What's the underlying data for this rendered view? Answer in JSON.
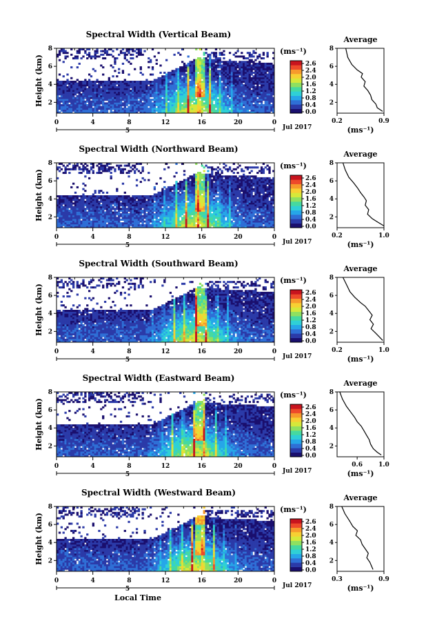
{
  "figure": {
    "xlabel": "Local Time",
    "date_label": "Jul 2017",
    "colorbar_unit": "(ms⁻¹)",
    "colorbar_ticks": [
      "2.6",
      "2.4",
      "2.0",
      "1.6",
      "1.2",
      "0.8",
      "0.4",
      "0.0"
    ],
    "colormap": [
      "#1a0f6e",
      "#2b3aa8",
      "#2f6fd6",
      "#26a6e8",
      "#2fd0d6",
      "#46d9a0",
      "#8fe060",
      "#d6e83a",
      "#f7d033",
      "#f79a2c",
      "#ee4a2a",
      "#c8141e"
    ],
    "average_title": "Average",
    "average_xlabel": "(ms⁻¹)"
  },
  "chart_data": [
    {
      "type": "heatmap",
      "title": "Spectral Width (Vertical Beam)",
      "xlabel": "",
      "ylabel": "Height (km)",
      "x_ticks": [
        "0",
        "4",
        "8",
        "12",
        "16",
        "20",
        "0"
      ],
      "x_secondary_label": "5",
      "y_ticks": [
        "8",
        "6",
        "4",
        "2"
      ],
      "xlim": [
        0,
        24
      ],
      "ylim": [
        0.8,
        8
      ],
      "profile": {
        "type": "line",
        "title": "Average",
        "x_ticks": [
          "0.2",
          "0.9"
        ],
        "xlim": [
          0.2,
          0.9
        ],
        "ylim": [
          0.8,
          8
        ],
        "x": [
          0.33,
          0.36,
          0.42,
          0.5,
          0.58,
          0.56,
          0.62,
          0.6,
          0.66,
          0.7,
          0.72,
          0.78,
          0.8,
          0.88
        ],
        "y": [
          8.0,
          7.0,
          6.2,
          5.6,
          5.2,
          4.8,
          4.3,
          3.8,
          3.3,
          2.8,
          2.3,
          1.8,
          1.4,
          1.0
        ]
      }
    },
    {
      "type": "heatmap",
      "title": "Spectral Width (Northward Beam)",
      "xlabel": "",
      "ylabel": "Height (km)",
      "x_ticks": [
        "0",
        "4",
        "8",
        "12",
        "16",
        "20",
        "0"
      ],
      "x_secondary_label": "5",
      "y_ticks": [
        "8",
        "6",
        "4",
        "2"
      ],
      "xlim": [
        0,
        24
      ],
      "ylim": [
        0.8,
        8
      ],
      "profile": {
        "type": "line",
        "title": "Average",
        "x_ticks": [
          "0.2",
          "1.0"
        ],
        "xlim": [
          0.2,
          1.0
        ],
        "ylim": [
          0.8,
          8
        ],
        "x": [
          0.3,
          0.34,
          0.4,
          0.48,
          0.55,
          0.6,
          0.66,
          0.7,
          0.68,
          0.74,
          0.72,
          0.8,
          0.9,
          1.0
        ],
        "y": [
          8.0,
          7.2,
          6.4,
          5.8,
          5.2,
          4.7,
          4.2,
          3.8,
          3.3,
          2.8,
          2.3,
          1.8,
          1.4,
          1.0
        ]
      }
    },
    {
      "type": "heatmap",
      "title": "Spectral Width (Southward Beam)",
      "xlabel": "",
      "ylabel": "Height (km)",
      "x_ticks": [
        "0",
        "4",
        "8",
        "12",
        "16",
        "20",
        "0"
      ],
      "x_secondary_label": "5",
      "y_ticks": [
        "8",
        "6",
        "4",
        "2"
      ],
      "xlim": [
        0,
        24
      ],
      "ylim": [
        0.8,
        8
      ],
      "profile": {
        "type": "line",
        "title": "Average",
        "x_ticks": [
          "0.2",
          "1.0"
        ],
        "xlim": [
          0.2,
          1.0
        ],
        "ylim": [
          0.8,
          8
        ],
        "x": [
          0.3,
          0.36,
          0.42,
          0.5,
          0.6,
          0.68,
          0.74,
          0.8,
          0.76,
          0.82,
          0.78,
          0.86,
          0.92,
          0.98
        ],
        "y": [
          8.0,
          7.2,
          6.4,
          5.8,
          5.2,
          4.8,
          4.3,
          3.8,
          3.3,
          2.8,
          2.3,
          1.8,
          1.4,
          1.0
        ]
      }
    },
    {
      "type": "heatmap",
      "title": "Spectral Width (Eastward Beam)",
      "xlabel": "",
      "ylabel": "Height (km)",
      "x_ticks": [
        "0",
        "4",
        "8",
        "12",
        "16",
        "20",
        "0"
      ],
      "x_secondary_label": "5",
      "y_ticks": [
        "8",
        "6",
        "4",
        "2"
      ],
      "xlim": [
        0,
        24
      ],
      "ylim": [
        0.8,
        8
      ],
      "profile": {
        "type": "line",
        "title": "Average",
        "x_ticks": [
          "0.6",
          "1.0"
        ],
        "xlim": [
          0.3,
          1.0
        ],
        "ylim": [
          0.8,
          8
        ],
        "x": [
          0.34,
          0.38,
          0.44,
          0.5,
          0.56,
          0.6,
          0.66,
          0.7,
          0.74,
          0.78,
          0.8,
          0.84,
          0.9,
          0.96
        ],
        "y": [
          8.0,
          7.2,
          6.4,
          5.8,
          5.2,
          4.7,
          4.2,
          3.7,
          3.2,
          2.7,
          2.2,
          1.7,
          1.3,
          1.0
        ]
      }
    },
    {
      "type": "heatmap",
      "title": "Spectral Width (Westward Beam)",
      "xlabel": "Local Time",
      "ylabel": "Height (km)",
      "x_ticks": [
        "0",
        "4",
        "8",
        "12",
        "16",
        "20",
        "0"
      ],
      "x_secondary_label": "5",
      "y_ticks": [
        "8",
        "6",
        "4",
        "2"
      ],
      "xlim": [
        0,
        24
      ],
      "ylim": [
        0.8,
        8
      ],
      "profile": {
        "type": "line",
        "title": "Average",
        "x_ticks": [
          "0.3",
          "0.9"
        ],
        "xlim": [
          0.3,
          0.9
        ],
        "ylim": [
          0.8,
          8
        ],
        "x": [
          0.36,
          0.4,
          0.46,
          0.5,
          0.56,
          0.54,
          0.6,
          0.62,
          0.66,
          0.7,
          0.68,
          0.72,
          0.74,
          0.76
        ],
        "y": [
          8.0,
          7.2,
          6.4,
          5.8,
          5.3,
          4.8,
          4.3,
          3.8,
          3.3,
          2.8,
          2.3,
          1.8,
          1.4,
          1.0
        ]
      }
    }
  ]
}
